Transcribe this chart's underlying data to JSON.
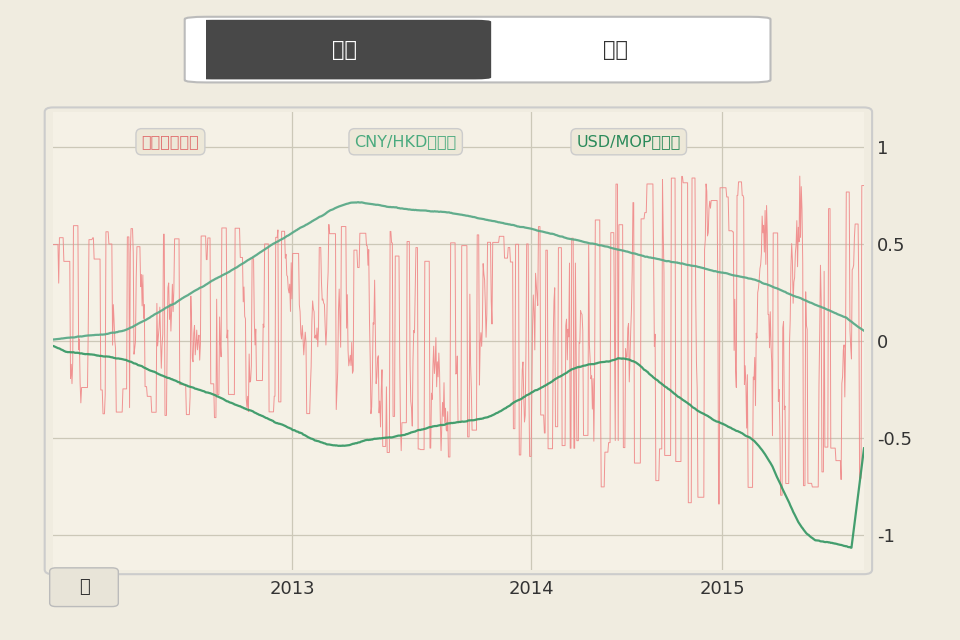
{
  "background_color": "#f0ece0",
  "chart_bg": "#f5f1e6",
  "title_tab1": "图表",
  "title_tab2": "表单",
  "legend1": "上个月关联性",
  "legend2": "CNY/HKD兑换率",
  "legend3": "USD/MOP兑换率",
  "legend1_color": "#e07070",
  "legend2_color": "#4aaa7e",
  "legend3_color": "#2a8a5a",
  "xlabel": "年",
  "ytick_labels": [
    "1",
    "0.5",
    "0",
    "-0.5",
    "-1"
  ],
  "ytick_vals": [
    1.0,
    0.5,
    0.0,
    -0.5,
    -1.0
  ],
  "xtick_labels": [
    "2013",
    "2014",
    "2015"
  ],
  "ylim": [
    -1.18,
    1.18
  ],
  "grid_color": "#ccc8b8",
  "corr_color": "#f08888",
  "cny_hkd_color": "#5aaa88",
  "usd_mop_color": "#3a9a68",
  "seed": 42
}
